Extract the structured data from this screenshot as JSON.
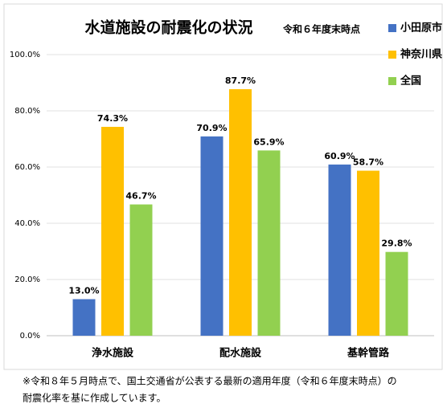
{
  "chart_data": {
    "type": "bar",
    "title": "水道施設の耐震化の状況",
    "subtitle": "令和６年度末時点",
    "categories": [
      "浄水施設",
      "配水施設",
      "基幹管路"
    ],
    "series": [
      {
        "name": "小田原市",
        "color": "#4472c4",
        "values": [
          13.0,
          70.9,
          60.9
        ],
        "value_labels": [
          "13.0%",
          "70.9%",
          "60.9%"
        ]
      },
      {
        "name": "神奈川県",
        "color": "#ffc000",
        "values": [
          74.3,
          87.7,
          58.7
        ],
        "value_labels": [
          "74.3%",
          "87.7%",
          "58.7%"
        ]
      },
      {
        "name": "全国",
        "color": "#92d050",
        "values": [
          46.7,
          65.9,
          29.8
        ],
        "value_labels": [
          "46.7%",
          "65.9%",
          "29.8%"
        ]
      }
    ],
    "ylim": [
      0,
      100
    ],
    "yticks": [
      {
        "value": 0,
        "label": "0.0%"
      },
      {
        "value": 20,
        "label": "20.0%"
      },
      {
        "value": 40,
        "label": "40.0%"
      },
      {
        "value": 60,
        "label": "60.0%"
      },
      {
        "value": 80,
        "label": "80.0%"
      },
      {
        "value": 100,
        "label": "100.0%"
      }
    ],
    "grid": true,
    "legend": "right",
    "note": [
      "※令和８年５月時点で、国土交通省が公表する最新の適用年度（令和６年度末時点）の",
      "耐震化率を基に作成しています。"
    ]
  }
}
